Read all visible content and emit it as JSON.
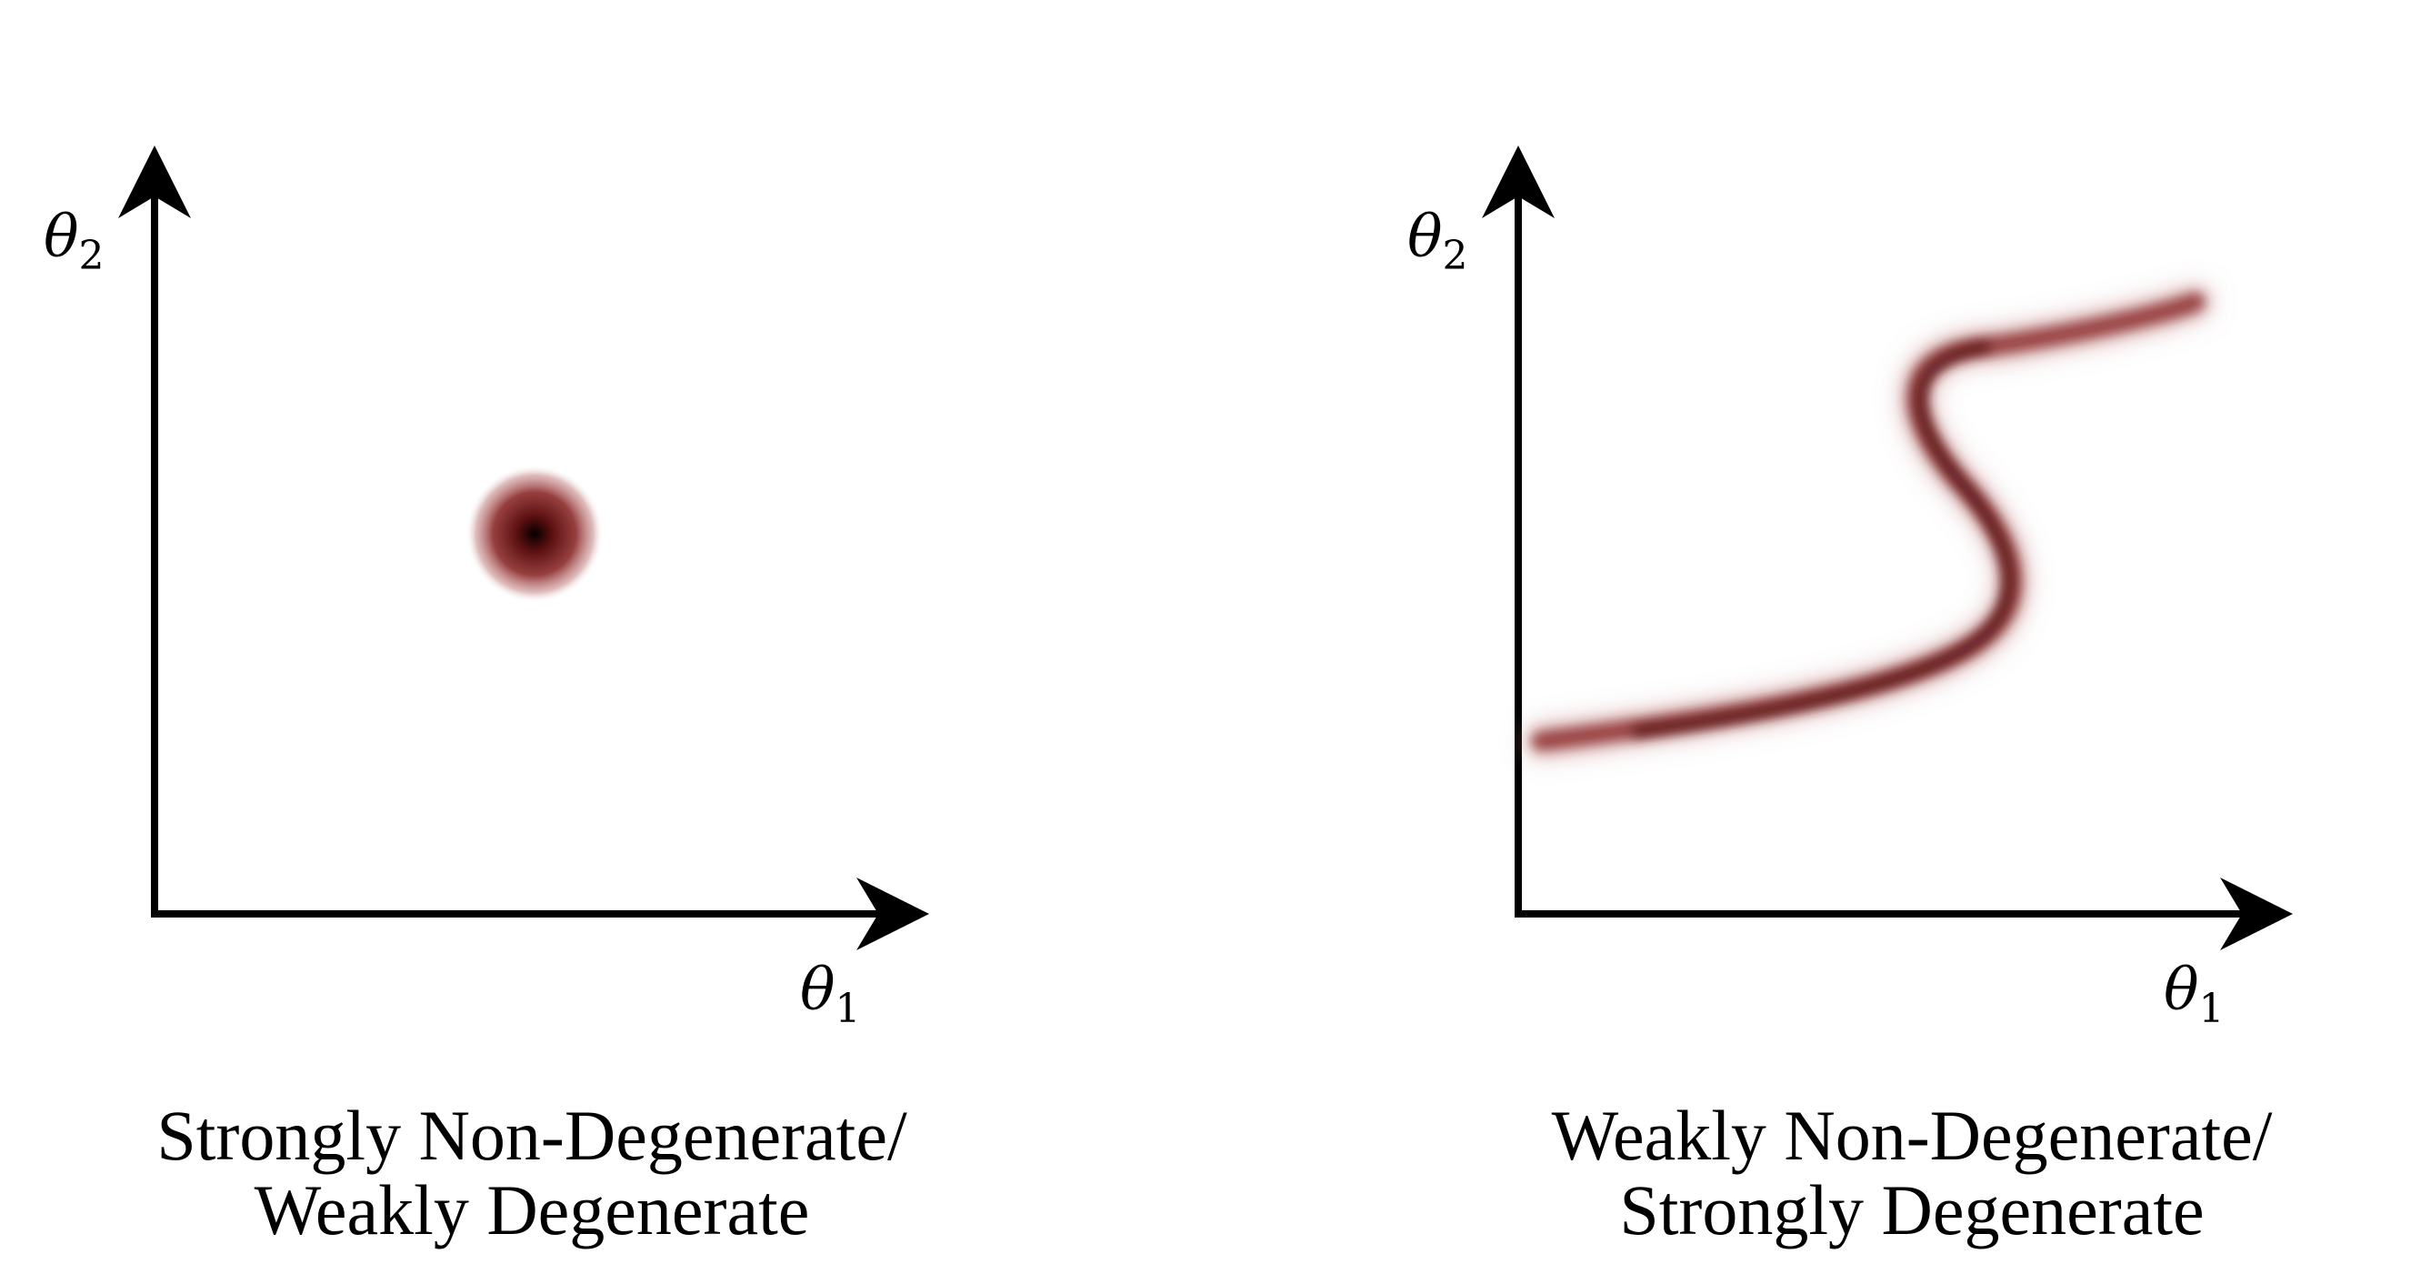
{
  "panels": [
    {
      "x_label": {
        "symbol": "θ",
        "subscript": "1"
      },
      "y_label": {
        "symbol": "θ",
        "subscript": "2"
      },
      "caption": [
        "Strongly Non-Degenerate/",
        "Weakly Degenerate"
      ],
      "shape": "isotropic blob"
    },
    {
      "x_label": {
        "symbol": "θ",
        "subscript": "1"
      },
      "y_label": {
        "symbol": "θ",
        "subscript": "2"
      },
      "caption": [
        "Weakly Non-Degenerate/",
        "Strongly Degenerate"
      ],
      "shape": "curved S-shaped band"
    }
  ],
  "colors": {
    "axis": "#000000",
    "density_core": "#1a0000",
    "density_mid": "#8b2a2a",
    "density_edge": "#ffffff"
  }
}
